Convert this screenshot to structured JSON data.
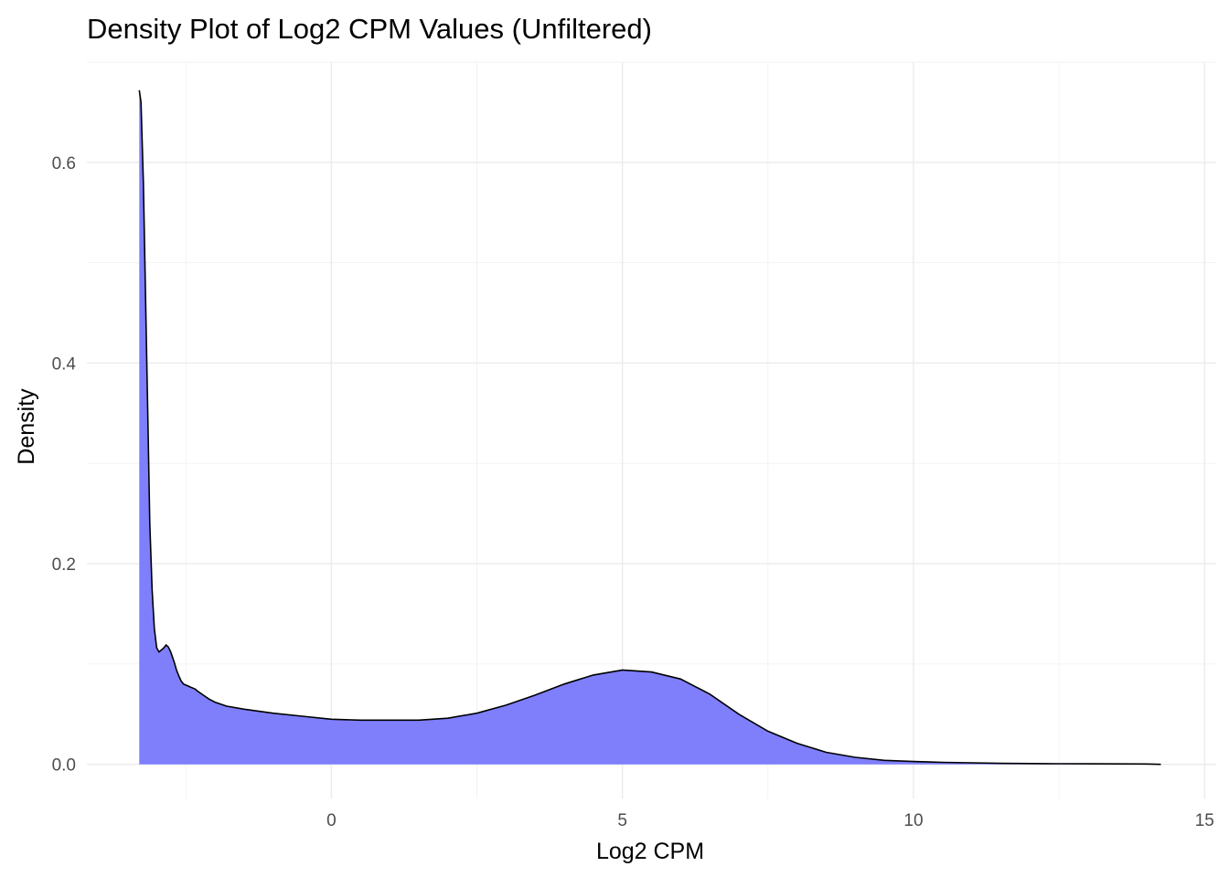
{
  "chart_data": {
    "type": "area",
    "title": "Density Plot of Log2 CPM Values (Unfiltered)",
    "xlabel": "Log2 CPM",
    "ylabel": "Density",
    "xlim": [
      -4.2,
      15.2
    ],
    "ylim": [
      -0.034,
      0.7
    ],
    "xticks": [
      0,
      5,
      10,
      15
    ],
    "xtick_labels": [
      "0",
      "5",
      "10",
      "15"
    ],
    "yticks": [
      0.0,
      0.2,
      0.4,
      0.6
    ],
    "ytick_labels": [
      "0.0",
      "0.2",
      "0.4",
      "0.6"
    ],
    "grid": true,
    "fill_color": "#7f7ffc",
    "line_color": "#000000",
    "series": [
      {
        "x": [
          -3.3,
          -3.27,
          -3.23,
          -3.19,
          -3.15,
          -3.12,
          -3.08,
          -3.04,
          -3.0,
          -2.96,
          -2.92,
          -2.88,
          -2.84,
          -2.8,
          -2.76,
          -2.7,
          -2.66,
          -2.62,
          -2.58,
          -2.54,
          -2.5,
          -2.46,
          -2.42,
          -2.38,
          -2.34,
          -2.3,
          -2.2,
          -2.1,
          -2.0,
          -1.8,
          -1.5,
          -1.0,
          -0.5,
          0.0,
          0.5,
          1.0,
          1.5,
          2.0,
          2.5,
          3.0,
          3.5,
          4.0,
          4.5,
          5.0,
          5.5,
          6.0,
          6.5,
          7.0,
          7.5,
          8.0,
          8.5,
          9.0,
          9.5,
          10.0,
          10.5,
          11.0,
          11.5,
          12.0,
          12.5,
          13.0,
          13.5,
          14.0,
          14.25
        ],
        "y": [
          0.672,
          0.66,
          0.58,
          0.46,
          0.34,
          0.24,
          0.175,
          0.135,
          0.116,
          0.112,
          0.114,
          0.116,
          0.119,
          0.117,
          0.112,
          0.102,
          0.094,
          0.088,
          0.083,
          0.08,
          0.079,
          0.078,
          0.077,
          0.076,
          0.075,
          0.073,
          0.069,
          0.065,
          0.062,
          0.058,
          0.055,
          0.051,
          0.048,
          0.045,
          0.044,
          0.044,
          0.044,
          0.046,
          0.051,
          0.059,
          0.069,
          0.08,
          0.089,
          0.094,
          0.092,
          0.085,
          0.07,
          0.05,
          0.033,
          0.021,
          0.012,
          0.007,
          0.004,
          0.0028,
          0.002,
          0.0015,
          0.001,
          0.0008,
          0.0006,
          0.0005,
          0.0004,
          0.0003,
          0.0
        ]
      }
    ]
  }
}
